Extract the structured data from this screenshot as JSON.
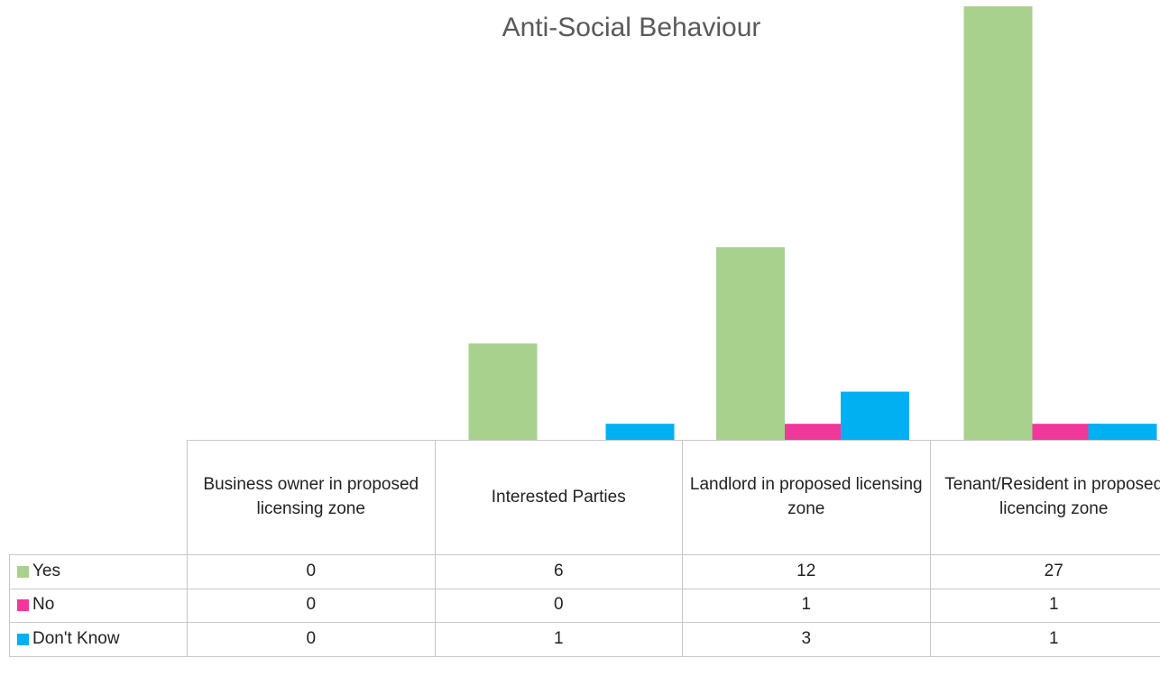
{
  "chart_data": {
    "type": "bar",
    "title": "Anti-Social Behaviour",
    "categories": [
      "Business owner in proposed licensing zone",
      "Interested Parties",
      "Landlord in proposed licensing zone",
      "Tenant/Resident in proposed licencing zone"
    ],
    "series": [
      {
        "name": "Yes",
        "color": "#a9d18e",
        "values": [
          0,
          6,
          12,
          27
        ]
      },
      {
        "name": "No",
        "color": "#f0379a",
        "values": [
          0,
          0,
          1,
          1
        ]
      },
      {
        "name": "Don't Know",
        "color": "#00b0f0",
        "values": [
          0,
          1,
          3,
          1
        ]
      }
    ]
  }
}
